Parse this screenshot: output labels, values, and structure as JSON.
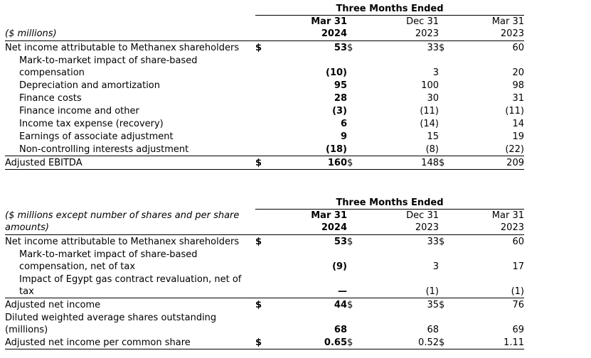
{
  "tables": [
    {
      "id": "adjusted-ebitda-table",
      "span_header": "Three Months Ended",
      "unit_note": "($ millions)",
      "columns": [
        {
          "line1": "Mar 31",
          "line2": "2024",
          "bold": true
        },
        {
          "line1": "Dec 31",
          "line2": "2023",
          "bold": false
        },
        {
          "line1": "Mar 31",
          "line2": "2023",
          "bold": false
        }
      ],
      "rows": [
        {
          "label": "Net income attributable to Methanex shareholders",
          "indent": false,
          "dollar": [
            true,
            true,
            true
          ],
          "values": [
            "53",
            "33",
            "60"
          ],
          "bold_first": true,
          "border_bottom": false
        },
        {
          "label": "Mark-to-market impact of share-based compensation",
          "indent": true,
          "dollar": [
            false,
            false,
            false
          ],
          "values": [
            "(10)",
            "3",
            "20"
          ],
          "bold_first": true,
          "border_bottom": false
        },
        {
          "label": "Depreciation and amortization",
          "indent": true,
          "dollar": [
            false,
            false,
            false
          ],
          "values": [
            "95",
            "100",
            "98"
          ],
          "bold_first": true,
          "border_bottom": false
        },
        {
          "label": "Finance costs",
          "indent": true,
          "dollar": [
            false,
            false,
            false
          ],
          "values": [
            "28",
            "30",
            "31"
          ],
          "bold_first": true,
          "border_bottom": false
        },
        {
          "label": "Finance income and other",
          "indent": true,
          "dollar": [
            false,
            false,
            false
          ],
          "values": [
            "(3)",
            "(11)",
            "(11)"
          ],
          "bold_first": true,
          "border_bottom": false
        },
        {
          "label": "Income tax expense (recovery)",
          "indent": true,
          "dollar": [
            false,
            false,
            false
          ],
          "values": [
            "6",
            "(14)",
            "14"
          ],
          "bold_first": true,
          "border_bottom": false
        },
        {
          "label": "Earnings of associate adjustment",
          "indent": true,
          "dollar": [
            false,
            false,
            false
          ],
          "values": [
            "9",
            "15",
            "19"
          ],
          "bold_first": true,
          "border_bottom": false
        },
        {
          "label": "Non-controlling interests adjustment",
          "indent": true,
          "dollar": [
            false,
            false,
            false
          ],
          "values": [
            "(18)",
            "(8)",
            "(22)"
          ],
          "bold_first": true,
          "border_bottom": true
        },
        {
          "label": "Adjusted EBITDA",
          "indent": false,
          "dollar": [
            true,
            true,
            true
          ],
          "values": [
            "160",
            "148",
            "209"
          ],
          "bold_first": true,
          "border_bottom": true
        }
      ]
    },
    {
      "id": "adjusted-net-income-table",
      "span_header": "Three Months Ended",
      "unit_note": "($ millions except number of shares and per share amounts)",
      "columns": [
        {
          "line1": "Mar 31",
          "line2": "2024",
          "bold": true
        },
        {
          "line1": "Dec 31",
          "line2": "2023",
          "bold": false
        },
        {
          "line1": "Mar 31",
          "line2": "2023",
          "bold": false
        }
      ],
      "rows": [
        {
          "label": "Net income attributable to Methanex shareholders",
          "indent": false,
          "dollar": [
            true,
            true,
            true
          ],
          "values": [
            "53",
            "33",
            "60"
          ],
          "bold_first": true,
          "border_bottom": false
        },
        {
          "label": "Mark-to-market impact of share-based compensation, net of tax",
          "indent": true,
          "dollar": [
            false,
            false,
            false
          ],
          "values": [
            "(9)",
            "3",
            "17"
          ],
          "bold_first": true,
          "border_bottom": false
        },
        {
          "label": "Impact of Egypt gas contract revaluation, net of tax",
          "indent": true,
          "dollar": [
            false,
            false,
            false
          ],
          "values": [
            "—",
            "(1)",
            "(1)"
          ],
          "bold_first": true,
          "border_bottom": true
        },
        {
          "label": "Adjusted net income",
          "indent": false,
          "dollar": [
            true,
            true,
            true
          ],
          "values": [
            "44",
            "35",
            "76"
          ],
          "bold_first": true,
          "border_bottom": false
        },
        {
          "label": "Diluted weighted average shares outstanding (millions)",
          "indent": false,
          "dollar": [
            false,
            false,
            false
          ],
          "values": [
            "68",
            "68",
            "69"
          ],
          "bold_first": true,
          "border_bottom": false
        },
        {
          "label": "Adjusted net income per common share",
          "indent": false,
          "dollar": [
            true,
            true,
            true
          ],
          "values": [
            "0.65",
            "0.52",
            "1.11"
          ],
          "bold_first": true,
          "border_bottom": true
        }
      ]
    }
  ],
  "currency_symbol": "$"
}
